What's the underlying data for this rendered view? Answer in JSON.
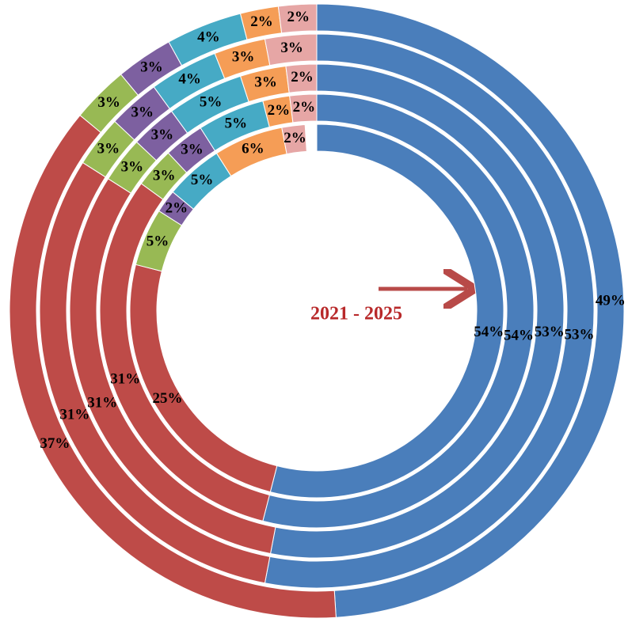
{
  "chart_data": {
    "type": "multi-donut",
    "annotation": "2021 - 2025",
    "colors": [
      "#4a7ebb",
      "#be4b48",
      "#98b954",
      "#7d60a0",
      "#46aac5",
      "#f59d56",
      "#e6a6a5"
    ],
    "series": [
      {
        "values": [
          49,
          37,
          3,
          3,
          4,
          2,
          2
        ],
        "value_labels": [
          "49%",
          "37%",
          "3%",
          "3%",
          "4%",
          "2%",
          "2%"
        ]
      },
      {
        "values": [
          53,
          31,
          3,
          3,
          4,
          3,
          3
        ],
        "value_labels": [
          "53%",
          "31%",
          "3%",
          "3%",
          "4%",
          "3%",
          "3%"
        ]
      },
      {
        "values": [
          53,
          31,
          3,
          3,
          5,
          3,
          2
        ],
        "value_labels": [
          "53%",
          "31%",
          "3%",
          "3%",
          "5%",
          "3%",
          "2%"
        ]
      },
      {
        "values": [
          54,
          31,
          3,
          3,
          5,
          2,
          2
        ],
        "value_labels": [
          "54%",
          "31%",
          "3%",
          "3%",
          "5%",
          "2%",
          "2%"
        ]
      },
      {
        "values": [
          54,
          25,
          5,
          2,
          5,
          6,
          2
        ],
        "value_labels": [
          "54%",
          "25%",
          "5%",
          "2%",
          "5%",
          "6%",
          "2%"
        ]
      }
    ]
  }
}
